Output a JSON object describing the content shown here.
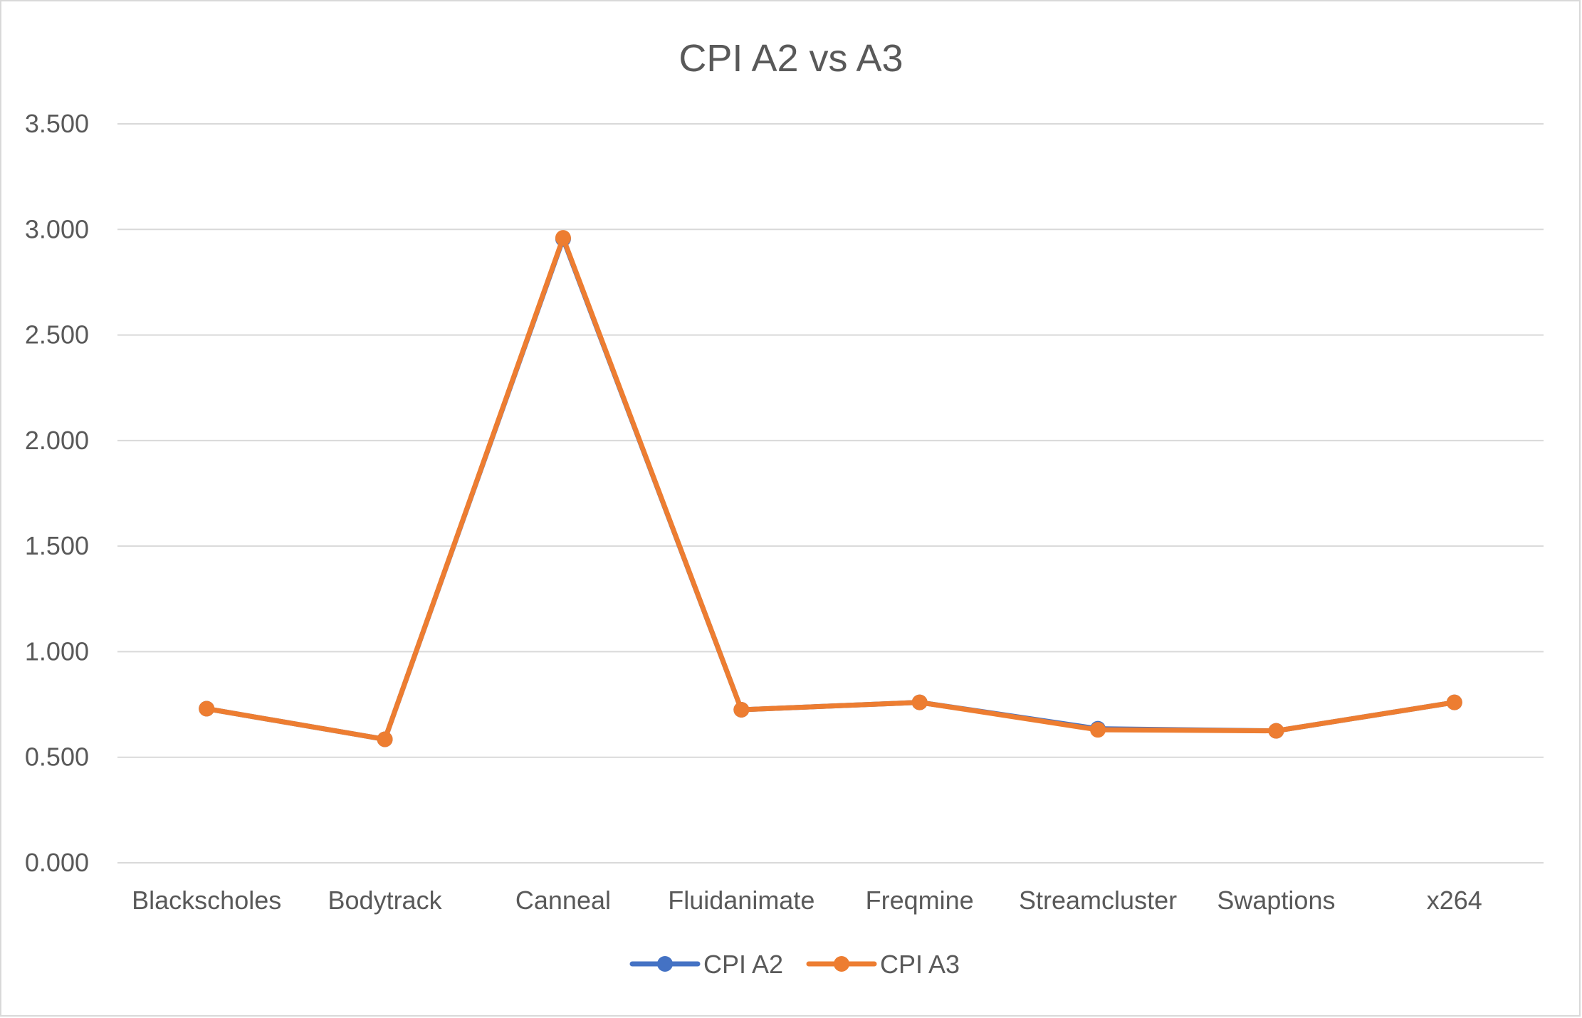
{
  "chart_data": {
    "type": "line",
    "title": "CPI A2 vs A3",
    "xlabel": "",
    "ylabel": "",
    "categories": [
      "Blackscholes",
      "Bodytrack",
      "Canneal",
      "Fluidanimate",
      "Freqmine",
      "Streamcluster",
      "Swaptions",
      "x264"
    ],
    "y_ticks": [
      "0.000",
      "0.500",
      "1.000",
      "1.500",
      "2.000",
      "2.500",
      "3.000",
      "3.500"
    ],
    "ylim": [
      0,
      3.5
    ],
    "grid": true,
    "legend_position": "bottom",
    "series": [
      {
        "name": "CPI A2",
        "color": "#4472C4",
        "values": [
          0.73,
          0.585,
          2.955,
          0.725,
          0.76,
          0.635,
          0.625,
          0.76
        ]
      },
      {
        "name": "CPI A3",
        "color": "#ED7D31",
        "values": [
          0.73,
          0.585,
          2.96,
          0.725,
          0.76,
          0.63,
          0.625,
          0.76
        ]
      }
    ]
  }
}
